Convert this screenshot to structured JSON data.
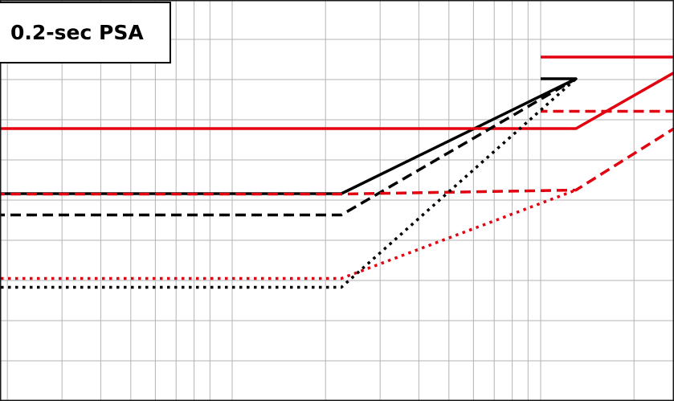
{
  "chart_data": {
    "type": "line",
    "title": "0.2-sec PSA",
    "xlabel": "",
    "ylabel": "",
    "grid": true,
    "xscale": "log",
    "xlim": [
      0.001,
      1
    ],
    "ylim": [
      0,
      1
    ],
    "series": [
      {
        "color": "#000000",
        "style": "solid",
        "points": [
          [
            0.001,
            0.516
          ],
          [
            0.0225,
            0.516
          ],
          [
            0.13,
            0.802
          ],
          [
            1.0,
            0.802
          ]
        ]
      },
      {
        "color": "#e3000f",
        "style": "solid",
        "points": [
          [
            0.001,
            0.678
          ],
          [
            0.13,
            0.678
          ],
          [
            0.33,
            0.856
          ],
          [
            1.0,
            0.856
          ]
        ]
      },
      {
        "color": "#000000",
        "style": "dashed",
        "points": [
          [
            0.001,
            0.463
          ],
          [
            0.0225,
            0.463
          ],
          [
            0.13,
            0.802
          ]
        ]
      },
      {
        "color": "#e3000f",
        "style": "dashed",
        "points": [
          [
            0.001,
            0.515
          ],
          [
            0.0225,
            0.515
          ],
          [
            0.13,
            0.525
          ],
          [
            0.33,
            0.721
          ],
          [
            1.0,
            0.721
          ]
        ]
      },
      {
        "color": "#000000",
        "style": "dotted",
        "points": [
          [
            0.001,
            0.283
          ],
          [
            0.0225,
            0.283
          ],
          [
            0.13,
            0.802
          ]
        ]
      },
      {
        "color": "#e3000f",
        "style": "dotted",
        "points": [
          [
            0.001,
            0.305
          ],
          [
            0.0225,
            0.305
          ],
          [
            0.13,
            0.525
          ]
        ]
      }
    ]
  }
}
